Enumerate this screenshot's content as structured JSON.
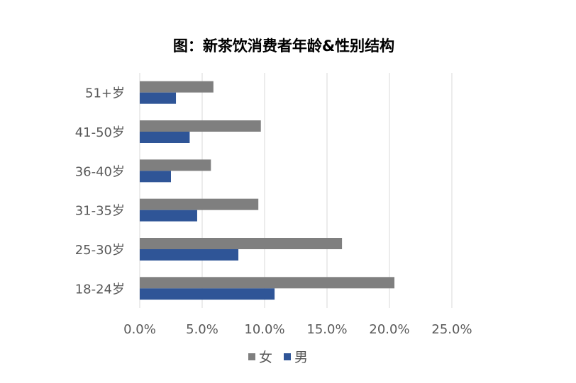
{
  "chart_data": {
    "type": "bar",
    "orientation": "horizontal",
    "title": "图：新茶饮消费者年龄&性别结构",
    "categories": [
      "51+岁",
      "41-50岁",
      "36-40岁",
      "31-35岁",
      "25-30岁",
      "18-24岁"
    ],
    "series": [
      {
        "name": "女",
        "color": "#7f7f7f",
        "values": [
          5.9,
          9.7,
          5.7,
          9.5,
          16.2,
          20.4
        ]
      },
      {
        "name": "男",
        "color": "#2f5597",
        "values": [
          2.9,
          4.0,
          2.5,
          4.6,
          7.9,
          10.8
        ]
      }
    ],
    "xlim": [
      0,
      25
    ],
    "xticks": [
      "0.0%",
      "5.0%",
      "10.0%",
      "15.0%",
      "20.0%",
      "25.0%"
    ],
    "xlabel": "",
    "ylabel": "",
    "grid": "vertical",
    "legend": "bottom"
  }
}
